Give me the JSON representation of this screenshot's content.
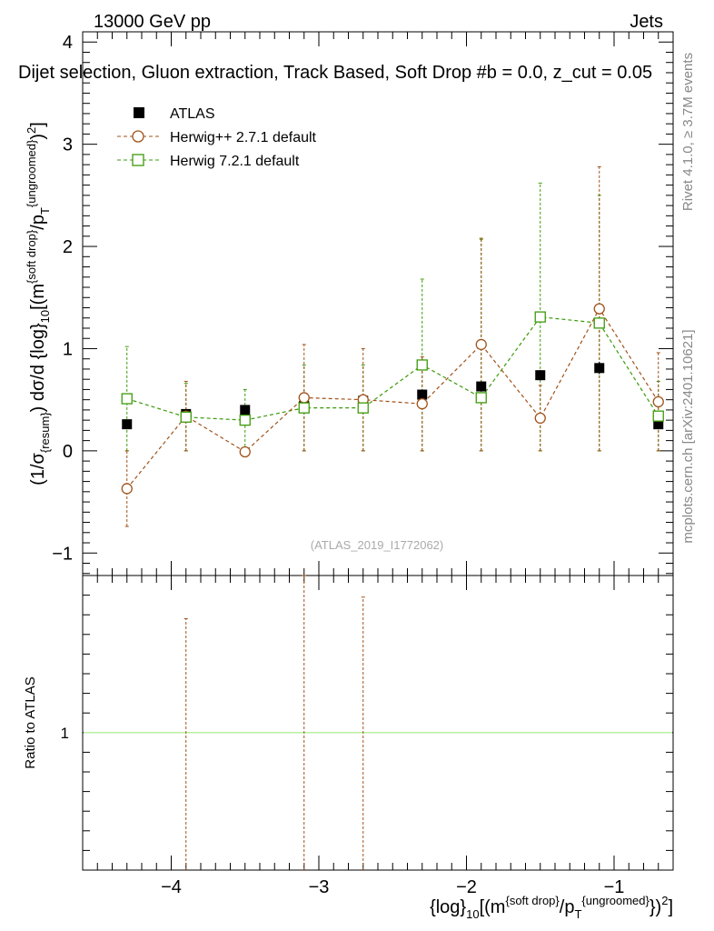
{
  "header": {
    "energy": "13000 GeV pp",
    "process": "Jets",
    "title": "Dijet selection, Gluon extraction, Track Based, Soft Drop #b = 0.0, z_cut = 0.05",
    "side_label_top": "Rivet 4.1.0, ≥ 3.7M events",
    "side_label_bottom": "mcplots.cern.ch [arXiv:2401.10621]",
    "watermark": "(ATLAS_2019_I1772062)"
  },
  "colors": {
    "atlas": "#000000",
    "herwigpp": "#a0521a",
    "herwig7": "#3c9a0a",
    "ratio_band": "#b8f0a0"
  },
  "chart_data": [
    {
      "type": "scatter",
      "title": "Dijet selection, Gluon extraction, Track Based, Soft Drop",
      "ylabel": "(1/σ_resum) dσ/d {log}_10[(m^{soft drop}/p_T^{ungroomed})^2]",
      "xlabel": "{log}_10[(m^{soft drop}/p_T^{ungroomed})^2]",
      "xlim": [
        -4.6,
        -0.6
      ],
      "ylim": [
        -1.22,
        4.1
      ],
      "yticks": [
        -1,
        0,
        1,
        2,
        3,
        4
      ],
      "x": [
        -4.3,
        -3.9,
        -3.5,
        -3.1,
        -2.7,
        -2.3,
        -1.9,
        -1.5,
        -1.1,
        -0.7
      ],
      "series": [
        {
          "name": "ATLAS",
          "marker": "filled-square",
          "values": [
            0.26,
            0.36,
            0.4,
            0.44,
            0.49,
            0.55,
            0.63,
            0.74,
            0.81,
            0.26
          ],
          "err": [
            0.03,
            0.03,
            0.04,
            0.04,
            0.04,
            0.05,
            0.05,
            0.05,
            0.06,
            0.03
          ]
        },
        {
          "name": "Herwig++ 2.7.1 default",
          "marker": "open-circle",
          "line": "dashed",
          "values": [
            -0.37,
            0.34,
            -0.01,
            0.52,
            0.5,
            0.46,
            1.04,
            0.32,
            1.39,
            0.48
          ],
          "err_lo": [
            0.37,
            0.34,
            0.01,
            0.52,
            0.5,
            0.46,
            1.04,
            0.32,
            1.39,
            0.48
          ],
          "err_hi": [
            0.37,
            0.34,
            0.01,
            0.52,
            0.5,
            0.46,
            1.04,
            0.32,
            1.39,
            0.48
          ]
        },
        {
          "name": "Herwig 7.2.1 default",
          "marker": "open-square",
          "line": "dashed",
          "values": [
            0.51,
            0.33,
            0.3,
            0.42,
            0.42,
            0.84,
            0.52,
            1.31,
            1.25,
            0.34
          ],
          "err_lo": [
            0.51,
            0.33,
            0.3,
            0.42,
            0.42,
            0.84,
            0.52,
            1.31,
            1.25,
            0.34
          ],
          "err_hi": [
            0.51,
            0.33,
            0.3,
            0.42,
            0.42,
            0.84,
            1.55,
            1.31,
            1.25,
            0.34
          ]
        }
      ]
    },
    {
      "type": "scatter",
      "ylabel": "Ratio to ATLAS",
      "xlabel": "{log}_10[(m^{soft drop}/p_T^{ungroomed})^2]",
      "xlim": [
        -4.6,
        -0.6
      ],
      "xticks": [
        -4,
        -3,
        -2,
        -1
      ],
      "xtick_labels": [
        "−4",
        "−3",
        "−2",
        "−1"
      ],
      "ylim": [
        0.3,
        1.8
      ],
      "yticks": [
        1
      ],
      "ytick_labels": [
        "1"
      ],
      "reference_line": 1,
      "ratio_error_bars": [
        {
          "series": "Herwig++ 2.7.1 default",
          "x": -3.9,
          "lo": 0.3,
          "hi": 1.58
        },
        {
          "series": "Herwig++ 2.7.1 default",
          "x": -3.1,
          "lo": 0.3,
          "hi": 1.8
        },
        {
          "series": "Herwig++ 2.7.1 default",
          "x": -2.7,
          "lo": 0.3,
          "hi": 1.69
        }
      ]
    }
  ]
}
